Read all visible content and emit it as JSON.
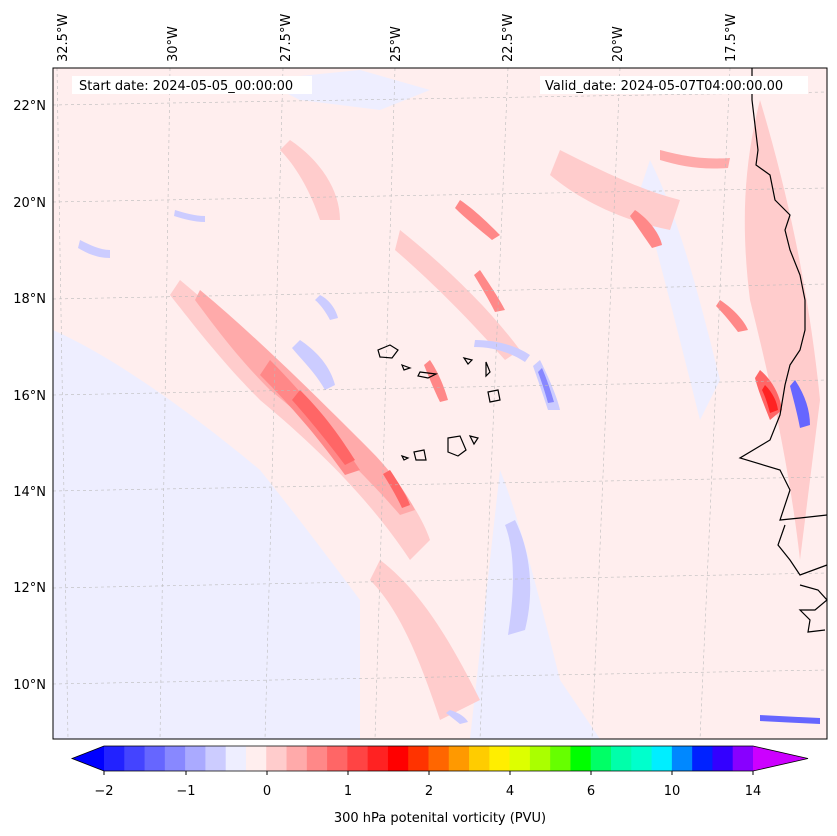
{
  "header": {
    "start_date": "Start date: 2024-05-05_00:00:00",
    "valid_date": "Valid_date: 2024-05-07T04:00:00.00"
  },
  "lon_labels": [
    "32.5°W",
    "30°W",
    "27.5°W",
    "25°W",
    "22.5°W",
    "20°W",
    "17.5°W"
  ],
  "lat_labels": [
    "22°N",
    "20°N",
    "18°N",
    "16°N",
    "14°N",
    "12°N",
    "10°N"
  ],
  "colorbar": {
    "label": "300 hPa potenital vorticity (PVU)",
    "ticks": [
      "−2",
      "−1",
      "0",
      "1",
      "2",
      "4",
      "6",
      "10",
      "14"
    ],
    "colors": [
      "#0000ff",
      "#2222ff",
      "#4444ff",
      "#6666ff",
      "#8888ff",
      "#aaaaff",
      "#ccccff",
      "#eeeeff",
      "#ffeeee",
      "#ffcccc",
      "#ffaaaa",
      "#ff8888",
      "#ff6666",
      "#ff4444",
      "#ff2222",
      "#ff0000",
      "#ff3300",
      "#ff6600",
      "#ff9900",
      "#ffcc00",
      "#ffee00",
      "#ddff00",
      "#aaff00",
      "#66ff00",
      "#00ff00",
      "#00ff66",
      "#00ffaa",
      "#00ffcc",
      "#00eeff",
      "#0088ff",
      "#0022ff",
      "#3300ff",
      "#8800ff",
      "#cc00ff"
    ]
  }
}
